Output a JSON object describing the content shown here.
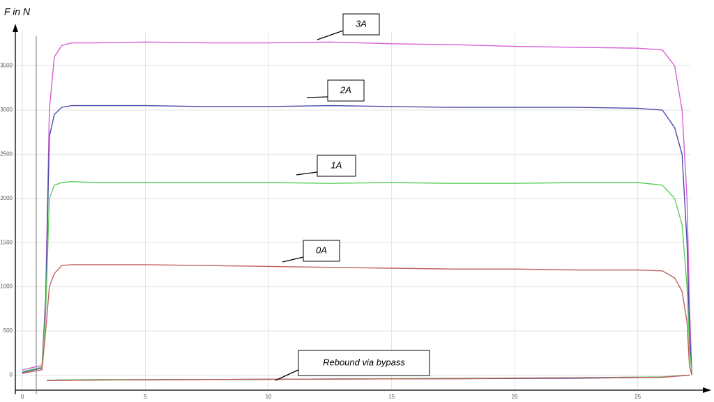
{
  "chart_data": {
    "type": "line",
    "y_axis_label": "F in N",
    "x": [
      0,
      0.8,
      0.95,
      1.1,
      1.3,
      1.6,
      2,
      3,
      5,
      7.5,
      10,
      12.5,
      15,
      17.5,
      20,
      22.5,
      25,
      26,
      26.5,
      26.8,
      27,
      27.1,
      27.2
    ],
    "series": [
      {
        "name": "3A",
        "color": "#d65ed6",
        "values": [
          60,
          110,
          900,
          3000,
          3600,
          3730,
          3760,
          3760,
          3770,
          3760,
          3760,
          3770,
          3750,
          3740,
          3720,
          3710,
          3700,
          3680,
          3500,
          3000,
          2000,
          800,
          0
        ],
        "rebound_values": [
          0,
          -20,
          -30,
          -40,
          -45,
          -50,
          -55,
          -60,
          -60
        ]
      },
      {
        "name": "2A",
        "color": "#4a4aa8",
        "values": [
          30,
          80,
          800,
          2700,
          2950,
          3030,
          3050,
          3050,
          3050,
          3040,
          3040,
          3050,
          3040,
          3030,
          3030,
          3030,
          3020,
          3000,
          2800,
          2500,
          1500,
          500,
          0
        ],
        "rebound_values": [
          0,
          -25,
          -35,
          -40,
          -45,
          -50,
          -55,
          -55,
          -60
        ]
      },
      {
        "name": "1A",
        "color": "#5ccf5c",
        "values": [
          40,
          90,
          700,
          2000,
          2150,
          2180,
          2190,
          2180,
          2180,
          2180,
          2180,
          2170,
          2180,
          2170,
          2170,
          2180,
          2180,
          2150,
          2000,
          1700,
          1000,
          300,
          0
        ],
        "rebound_values": [
          0,
          -20,
          -30,
          -35,
          -45,
          -50,
          -50,
          -55,
          -60
        ]
      },
      {
        "name": "0A",
        "color": "#c06060",
        "values": [
          20,
          60,
          500,
          1000,
          1150,
          1240,
          1250,
          1250,
          1250,
          1240,
          1230,
          1220,
          1210,
          1200,
          1200,
          1190,
          1190,
          1180,
          1100,
          950,
          600,
          100,
          0
        ],
        "rebound_values": [
          0,
          -25,
          -30,
          -40,
          -45,
          -50,
          -55,
          -60,
          -60
        ]
      }
    ],
    "rebound_x": [
      27.1,
      26,
      22.5,
      17.5,
      12.5,
      7.5,
      3,
      1.5,
      1.0
    ],
    "annotation": "Rebound via bypass",
    "xlim": [
      0,
      27.7
    ],
    "ylim": [
      -170,
      3930
    ],
    "xticks": [
      0,
      5,
      10,
      15,
      20,
      25
    ],
    "yticks": [
      0,
      500,
      1000,
      1500,
      2000,
      2500,
      3000,
      3500
    ],
    "grid": true
  }
}
